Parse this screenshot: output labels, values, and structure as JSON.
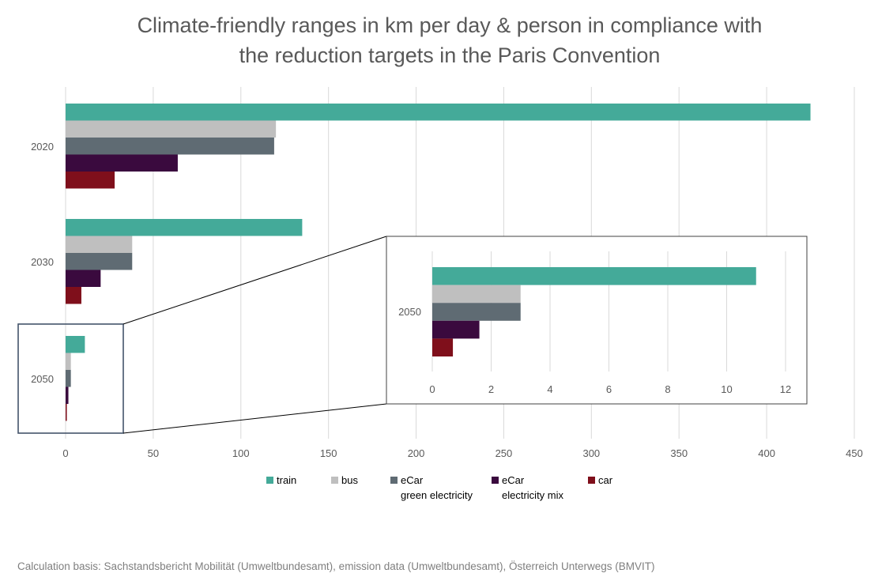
{
  "chart_data": [
    {
      "type": "bar",
      "orientation": "horizontal",
      "title": [
        "Climate-friendly ranges in km per day & person in compliance with",
        "the reduction targets in the Paris Convention"
      ],
      "categories": [
        "2020",
        "2030",
        "2050"
      ],
      "series": [
        {
          "name": "train",
          "label_lines": [
            "train"
          ],
          "color": "#44aa99",
          "values": [
            425,
            135,
            11
          ]
        },
        {
          "name": "bus",
          "label_lines": [
            "bus"
          ],
          "color": "#bfbfbf",
          "values": [
            120,
            38,
            3
          ]
        },
        {
          "name": "eCar green electricity",
          "label_lines": [
            "eCar",
            "green electricity"
          ],
          "color": "#5f6b73",
          "values": [
            119,
            38,
            3
          ]
        },
        {
          "name": "eCar electricity mix",
          "label_lines": [
            "eCar",
            "electricity mix"
          ],
          "color": "#3a0a3e",
          "values": [
            64,
            20,
            1.6
          ]
        },
        {
          "name": "car",
          "label_lines": [
            "car"
          ],
          "color": "#7f0f1b",
          "values": [
            28,
            9,
            0.7
          ]
        }
      ],
      "xlim": [
        0,
        450
      ],
      "xticks": [
        0,
        50,
        100,
        150,
        200,
        250,
        300,
        350,
        400,
        450
      ],
      "grid": true,
      "legend": "bottom"
    },
    {
      "type": "bar",
      "orientation": "horizontal",
      "role": "inset zoom of 2050",
      "categories": [
        "2050"
      ],
      "series": [
        {
          "name": "train",
          "color": "#44aa99",
          "values": [
            11
          ]
        },
        {
          "name": "bus",
          "color": "#bfbfbf",
          "values": [
            3
          ]
        },
        {
          "name": "eCar green electricity",
          "color": "#5f6b73",
          "values": [
            3
          ]
        },
        {
          "name": "eCar electricity mix",
          "color": "#3a0a3e",
          "values": [
            1.6
          ]
        },
        {
          "name": "car",
          "color": "#7f0f1b",
          "values": [
            0.7
          ]
        }
      ],
      "xlim": [
        0,
        12
      ],
      "xticks": [
        0,
        2,
        4,
        6,
        8,
        10,
        12
      ],
      "grid": true
    }
  ],
  "source_note": "Calculation basis: Sachstandsbericht Mobilität (Umweltbundesamt), emission data (Umweltbundesamt), Österreich Unterwegs (BMVIT)",
  "colors": {
    "text": "#595959",
    "grid": "#d9d9d9",
    "highlight_box": "#44546a",
    "inset_border": "#404040"
  }
}
